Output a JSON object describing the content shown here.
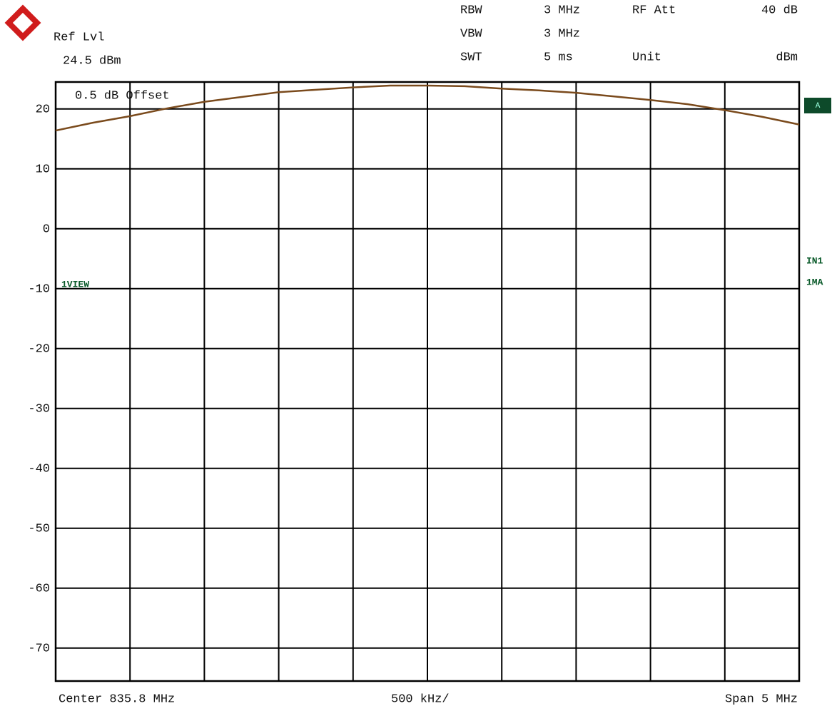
{
  "chart_data": {
    "type": "line",
    "ref_label": "Ref Lvl",
    "ref_level": "24.5 dBm",
    "settings": [
      {
        "name": "RBW",
        "value": "3 MHz"
      },
      {
        "name": "VBW",
        "value": "3 MHz"
      },
      {
        "name": "SWT",
        "value": "5 ms"
      },
      {
        "name": "RF Att",
        "value": "40 dB"
      },
      {
        "name": "Unit",
        "value": "dBm"
      }
    ],
    "offset_note": "0.5 dB Offset",
    "trace_view": "1VIEW",
    "trace_marker": "A",
    "side_labels": [
      "IN1",
      "1MA"
    ],
    "center": "Center 835.8 MHz",
    "division": "500 kHz/",
    "span": "Span 5 MHz",
    "xlim": [
      833.3,
      838.3
    ],
    "xticks": [
      833.3,
      833.8,
      834.3,
      834.8,
      835.3,
      835.8,
      836.3,
      836.8,
      837.3,
      837.8,
      838.3
    ],
    "ylim": [
      -75.5,
      24.5
    ],
    "yticks": [
      20,
      10,
      0,
      -10,
      -20,
      -30,
      -40,
      -50,
      -60,
      -70
    ],
    "grid": true,
    "x": [
      833.3,
      833.55,
      833.8,
      834.05,
      834.3,
      834.55,
      834.8,
      835.05,
      835.3,
      835.55,
      835.8,
      836.05,
      836.3,
      836.55,
      836.8,
      837.05,
      837.3,
      837.55,
      837.8,
      838.05,
      838.3
    ],
    "series": [
      {
        "color": "#7a4a1c",
        "values": [
          16.4,
          17.7,
          18.8,
          20.1,
          21.2,
          22.0,
          22.8,
          23.2,
          23.6,
          23.9,
          23.9,
          23.8,
          23.4,
          23.1,
          22.7,
          22.1,
          21.5,
          20.8,
          19.8,
          18.7,
          17.4
        ]
      }
    ]
  }
}
